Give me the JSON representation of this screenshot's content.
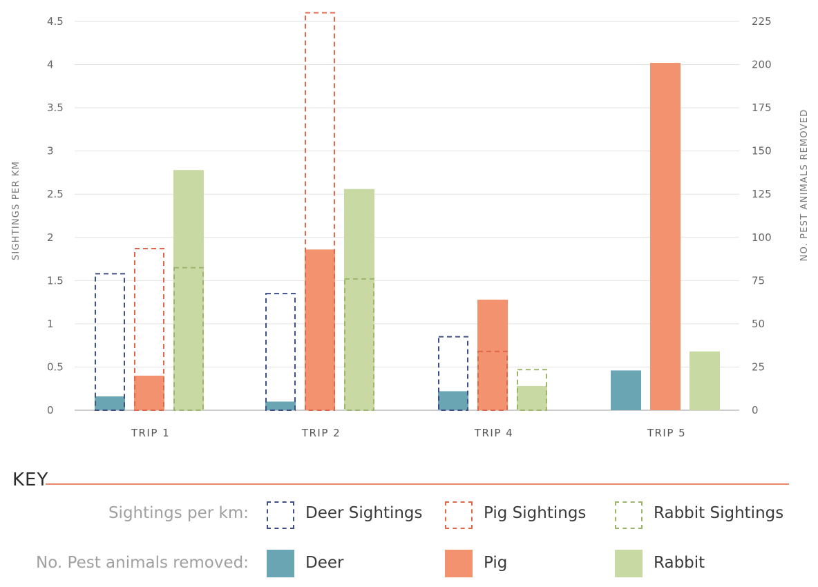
{
  "chart_data": {
    "type": "bar",
    "categories": [
      "TRIP 1",
      "TRIP 2",
      "TRIP 4",
      "TRIP 5"
    ],
    "ylabel_left": "SIGHTINGS PER KM",
    "ylabel_right": "NO. PEST ANIMALS REMOVED",
    "left_ticks": [
      "0",
      "0.5",
      "1",
      "1.5",
      "2",
      "2.5",
      "3",
      "3.5",
      "4",
      "4.5"
    ],
    "right_ticks": [
      "0",
      "25",
      "50",
      "75",
      "100",
      "125",
      "150",
      "175",
      "200",
      "225"
    ],
    "ylim_left": [
      0,
      4.5
    ],
    "ylim_right": [
      0,
      225
    ],
    "grid": true,
    "series": [
      {
        "name": "Deer Sightings",
        "axis": "left",
        "style": "dashed",
        "color": "#3d4f86",
        "values": [
          1.58,
          1.35,
          0.85,
          null
        ]
      },
      {
        "name": "Pig Sightings",
        "axis": "left",
        "style": "dashed",
        "color": "#e0674a",
        "values": [
          1.87,
          4.6,
          0.68,
          null
        ]
      },
      {
        "name": "Rabbit Sightings",
        "axis": "left",
        "style": "dashed",
        "color": "#9bb56b",
        "values": [
          1.65,
          1.52,
          0.47,
          null
        ]
      },
      {
        "name": "Deer",
        "axis": "right",
        "style": "solid",
        "color": "#6aa5b4",
        "values": [
          8,
          5,
          11,
          23
        ]
      },
      {
        "name": "Pig",
        "axis": "right",
        "style": "solid",
        "color": "#f3926e",
        "values": [
          20,
          93,
          64,
          201
        ]
      },
      {
        "name": "Rabbit",
        "axis": "right",
        "style": "solid",
        "color": "#c9d9a4",
        "values": [
          139,
          128,
          14,
          34
        ]
      }
    ]
  },
  "key": {
    "title": "KEY",
    "rows": [
      {
        "label": "Sightings per km:",
        "items": [
          "Deer Sightings",
          "Pig Sightings",
          "Rabbit Sightings"
        ]
      },
      {
        "label": "No. Pest animals removed:",
        "items": [
          "Deer",
          "Pig",
          "Rabbit"
        ]
      }
    ]
  }
}
